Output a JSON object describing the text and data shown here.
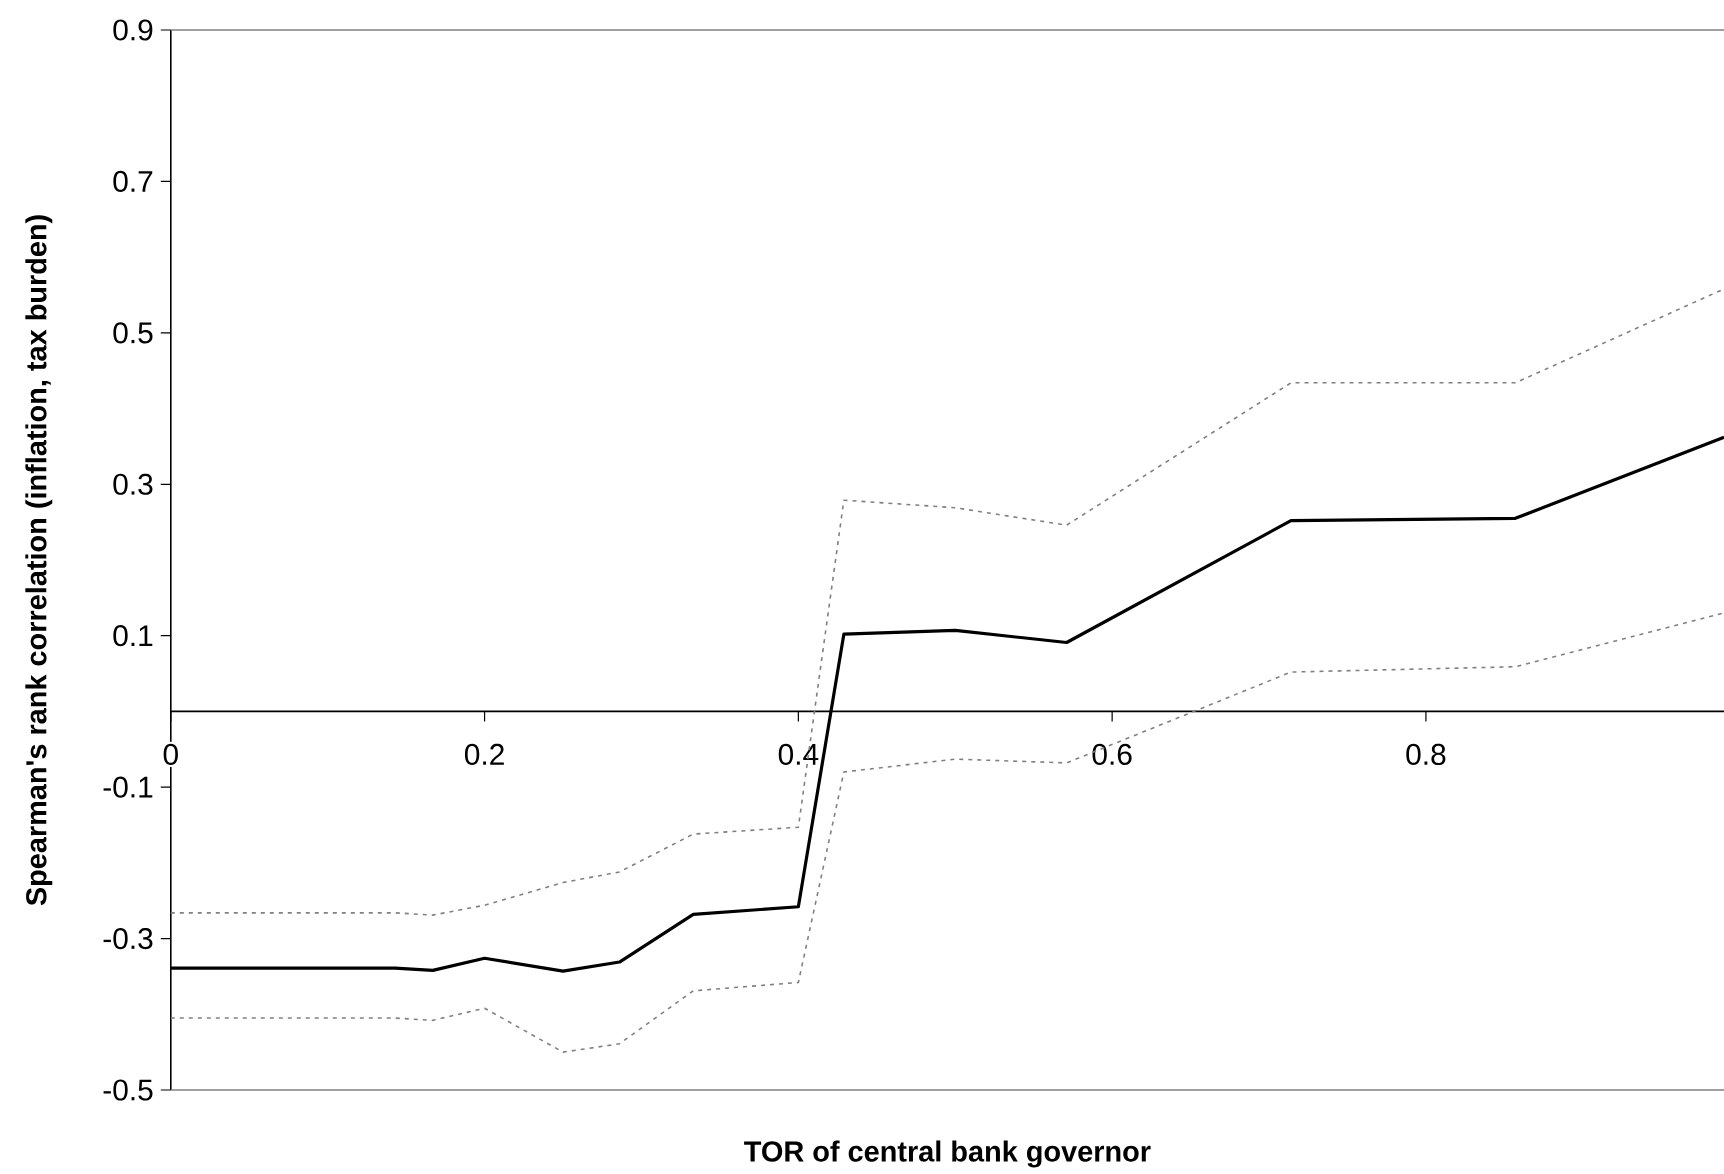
{
  "chart_data": {
    "type": "line",
    "xlabel": "TOR of central bank governor",
    "ylabel": "Spearman's rank correlation (inflation, tax burden)",
    "x": [
      0,
      0.143,
      0.167,
      0.2,
      0.25,
      0.286,
      0.333,
      0.4,
      0.429,
      0.5,
      0.571,
      0.714,
      0.857,
      0.99
    ],
    "series": [
      {
        "color": "#000000",
        "line_style": "solid",
        "values": [
          -0.339,
          -0.339,
          -0.342,
          -0.326,
          -0.343,
          -0.331,
          -0.268,
          -0.258,
          0.102,
          0.107,
          0.091,
          0.252,
          0.255,
          0.362
        ]
      },
      {
        "color": "#808080",
        "line_style": "dotted",
        "values": [
          -0.266,
          -0.266,
          -0.269,
          -0.256,
          -0.226,
          -0.212,
          -0.162,
          -0.153,
          0.279,
          0.269,
          0.246,
          0.434,
          0.434,
          0.558
        ]
      },
      {
        "color": "#808080",
        "line_style": "dotted",
        "values": [
          -0.405,
          -0.405,
          -0.408,
          -0.392,
          -0.45,
          -0.439,
          -0.369,
          -0.358,
          -0.08,
          -0.063,
          -0.068,
          0.052,
          0.059,
          0.13
        ]
      }
    ],
    "xlim": [
      0,
      0.99
    ],
    "xticks": [
      0,
      0.2,
      0.4,
      0.6,
      0.8
    ],
    "ylim": [
      -0.5,
      0.9
    ],
    "yticks": [
      -0.5,
      -0.3,
      -0.1,
      0.1,
      0.3,
      0.5,
      0.7,
      0.9
    ],
    "grid": false,
    "marker": "none"
  }
}
